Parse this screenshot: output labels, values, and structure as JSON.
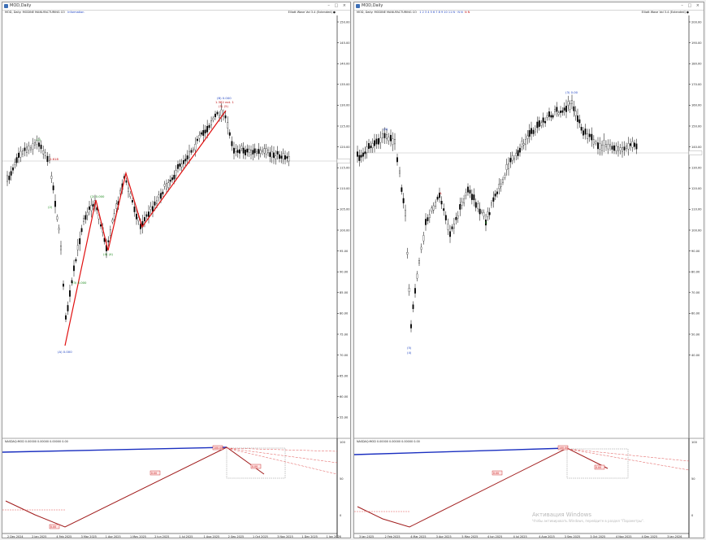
{
  "windows": {
    "left": {
      "title": "MOD,Daily",
      "buttons": "– □ ×",
      "header": {
        "symbol": "MOD, Daily:  MODINE MANUFACTURING CO",
        "link": "Information"
      },
      "info": "Elliott Wave Vol 3.4 (Extended)  ●",
      "main_ticks": [
        "150.00",
        "145.00",
        "140.00",
        "135.00",
        "130.00",
        "125.00",
        "120.00",
        "115.00",
        "110.00",
        "105.00",
        "100.00",
        "95.00",
        "90.00",
        "85.00",
        "80.00",
        "75.00",
        "70.00",
        "65.00",
        "60.00",
        "55.00"
      ],
      "sub_ticks": [
        "100",
        "50",
        "0"
      ],
      "sub_label": "NASDAQ:MOD 0.00000 0.00000 0.00000 0.00",
      "date_labels": [
        "2 Dec 2024",
        "2 Jan 2025",
        "4 Feb 2025",
        "3 Mar 2025",
        "1 Apr 2025",
        "1 May 2025",
        "2 Jun 2025",
        "1 Jul 2025",
        "1 Aug 2025",
        "2 Sep 2025",
        "1 Oct 2025",
        "3 Nov 2025",
        "1 Dec 2025",
        "1 Jan 2026"
      ],
      "wave_labels": [
        {
          "text": "(B) 0.000",
          "color": "#1a3fc0"
        },
        {
          "text": "1.382 ext. 1",
          "color": "#c01010"
        },
        {
          "text": "(5) (5)",
          "color": "#c01010"
        },
        {
          "text": "(2) 0.000",
          "color": "#1a8a1a"
        },
        {
          "text": "(4) (4)",
          "color": "#1a8a1a"
        },
        {
          "text": "(A) 0.000",
          "color": "#1a3fc0"
        },
        {
          "text": "(3) 0.000",
          "color": "#1a8a1a"
        },
        {
          "text": "0.618",
          "color": "#c01010"
        },
        {
          "text": "(1)",
          "color": "#1a8a1a"
        },
        {
          "text": "(2)",
          "color": "#1a8a1a"
        }
      ],
      "sub_boxes": [
        "100.00",
        "0.00",
        "0.00",
        "0.00"
      ]
    },
    "right": {
      "title": "MOD,Daily",
      "buttons": "– □ ×",
      "header": {
        "symbol": "MOD, Daily:  MODINE MANUFACTURING CO",
        "periods": "1  2  3  4  5  6  7  8  9  10  11  N  ·  N  N",
        "last": "N  N"
      },
      "info": "Elliott Wave Vol 3.4 (Extended)  ●",
      "main_ticks": [
        "200.00",
        "190.00",
        "180.00",
        "170.00",
        "160.00",
        "150.00",
        "140.00",
        "130.00",
        "120.00",
        "110.00",
        "100.00",
        "90.00",
        "80.00",
        "70.00",
        "60.00",
        "50.00",
        "40.00"
      ],
      "sub_ticks": [
        "100",
        "50",
        "0"
      ],
      "sub_label": "NASDAQ:MOD 0.00000 0.00000 0.00000 0.00",
      "date_labels": [
        "3 Jan 2025",
        "2 Feb 2025",
        "4 Mar 2025",
        "3 Apr 2025",
        "5 May 2025",
        "4 Jun 2025",
        "4 Jul 2025",
        "4 Aug 2025",
        "3 Sep 2025",
        "3 Oct 2025",
        "4 Nov 2025",
        "4 Dec 2025",
        "3 Jan 2026"
      ],
      "wave_labels": [
        {
          "text": "(4)",
          "color": "#1a3fc0"
        },
        {
          "text": "(3) 0.00",
          "color": "#1a3fc0"
        },
        {
          "text": "A",
          "color": "#c01010"
        },
        {
          "text": "B",
          "color": "#1a8a1a"
        },
        {
          "text": "(5)",
          "color": "#1a3fc0"
        },
        {
          "text": "(4)",
          "color": "#1a3fc0"
        }
      ],
      "sub_boxes": [
        "100.00",
        "0.00",
        "0.00"
      ]
    }
  },
  "watermark": {
    "line1": "Активация Windows",
    "line2": "Чтобы активировать Windows, перейдите в раздел \"Параметры\"."
  },
  "chart_data": [
    {
      "type": "candlestick",
      "panel": "left",
      "ylim": [
        55,
        150
      ],
      "wave_path": [
        {
          "x": "2025-04-07",
          "y": 64.5
        },
        {
          "x": "2025-05-14",
          "y": 104.7
        },
        {
          "x": "2025-06-10",
          "y": 88.7
        },
        {
          "x": "2025-07-01",
          "y": 113.0
        },
        {
          "x": "2025-07-28",
          "y": 97.0
        },
        {
          "x": "2025-10-15",
          "y": 136.0
        }
      ]
    },
    {
      "type": "candlestick",
      "panel": "right",
      "ylim": [
        40,
        200
      ],
      "swing_points": [
        {
          "label": "(4)",
          "x": "2025-02-20",
          "y": 161.0
        },
        {
          "label": "(5)",
          "x": "2025-04-07",
          "y": 66.0
        },
        {
          "label": "A",
          "x": "2025-06-03",
          "y": 122.0
        },
        {
          "label": "B",
          "x": "2025-07-15",
          "y": 106.0
        },
        {
          "label": "(3) 0.00",
          "x": "2025-11-10",
          "y": 180.0
        }
      ]
    }
  ]
}
